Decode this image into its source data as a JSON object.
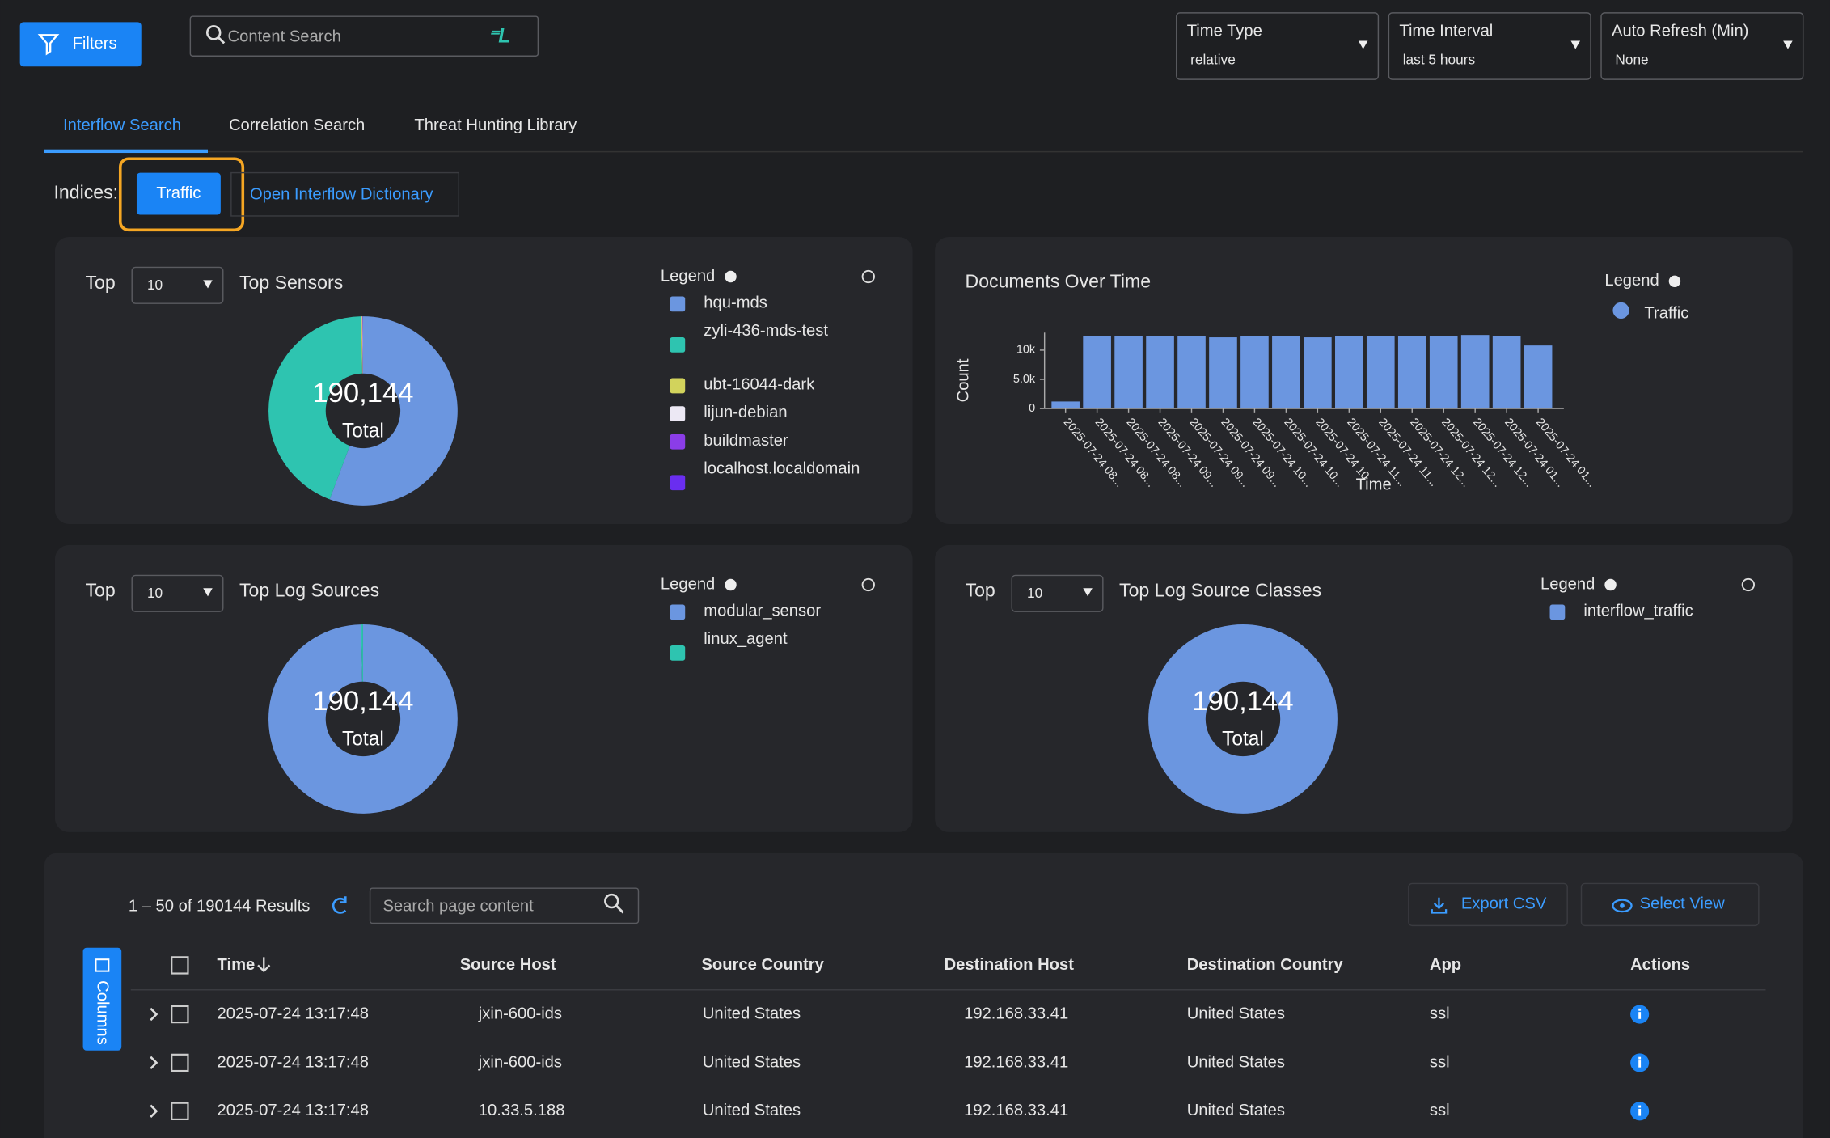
{
  "header": {
    "filters": "Filters",
    "search_placeholder": "Content Search",
    "dropdowns": [
      {
        "label": "Time Type",
        "value": "relative"
      },
      {
        "label": "Time Interval",
        "value": "last 5 hours"
      },
      {
        "label": "Auto Refresh (Min)",
        "value": "None"
      }
    ]
  },
  "tabs": [
    "Interflow Search",
    "Correlation Search",
    "Threat Hunting Library"
  ],
  "indices": {
    "label": "Indices:",
    "selected": "Traffic",
    "dictionary_link": "Open Interflow Dictionary"
  },
  "chart_data": [
    {
      "type": "pie",
      "top_label": "Top",
      "top_n": 10,
      "title": "Top Sensors",
      "legend_title": "Legend",
      "total": {
        "value": 190144,
        "label": "190,144"
      },
      "total_caption": "Total",
      "categories": [
        "hqu-mds",
        "zyli-436-mds-test",
        "ubt-16044-dark",
        "lijun-debian",
        "buildmaster",
        "localhost.localdomain"
      ],
      "values": [
        106000,
        83500,
        300,
        200,
        100,
        44
      ],
      "colors": [
        "#6b96e0",
        "#2ec4b0",
        "#d2d35c",
        "#ece8f4",
        "#8b3de8",
        "#6a2ef0"
      ]
    },
    {
      "type": "bar",
      "title": "Documents Over Time",
      "legend_title": "Legend",
      "xlabel": "Time",
      "ylabel": "Count",
      "categories": [
        "2025-07-24 08...",
        "2025-07-24 08...",
        "2025-07-24 08...",
        "2025-07-24 09...",
        "2025-07-24 09...",
        "2025-07-24 09...",
        "2025-07-24 10...",
        "2025-07-24 10...",
        "2025-07-24 10",
        "2025-07-24 11...",
        "2025-07-24 11...",
        "2025-07-24 12...",
        "2025-07-24 12...",
        "2025-07-24 12...",
        "2025-07-24 01...",
        "2025-07-24 01..."
      ],
      "series": [
        {
          "name": "Traffic",
          "color": "#6b96e0",
          "values": [
            1200,
            12400,
            12400,
            12400,
            12400,
            12200,
            12400,
            12400,
            12200,
            12400,
            12400,
            12400,
            12400,
            12600,
            12400,
            10800
          ]
        }
      ],
      "ylim": [
        0,
        13000
      ],
      "yticks": [
        0,
        {
          "value": 5000,
          "label": "5.0k"
        },
        {
          "value": 10000,
          "label": "10k"
        }
      ]
    },
    {
      "type": "pie",
      "top_label": "Top",
      "top_n": 10,
      "title": "Top Log Sources",
      "legend_title": "Legend",
      "total": {
        "value": 190144,
        "label": "190,144"
      },
      "total_caption": "Total",
      "categories": [
        "modular_sensor",
        "linux_agent"
      ],
      "values": [
        189500,
        644
      ],
      "colors": [
        "#6b96e0",
        "#2ec4b0"
      ]
    },
    {
      "type": "pie",
      "top_label": "Top",
      "top_n": 10,
      "title": "Top Log Source Classes",
      "legend_title": "Legend",
      "total": {
        "value": 190144,
        "label": "190,144"
      },
      "total_caption": "Total",
      "categories": [
        "interflow_traffic"
      ],
      "values": [
        190144
      ],
      "colors": [
        "#6b96e0"
      ]
    }
  ],
  "results": {
    "summary": "1 – 50 of 190144 Results",
    "search_placeholder": "Search page content",
    "export": "Export CSV",
    "select_view": "Select View",
    "columns_button": "Columns",
    "columns": [
      "Time",
      "Source Host",
      "Source Country",
      "Destination Host",
      "Destination Country",
      "App",
      "Actions"
    ],
    "rows": [
      [
        "2025-07-24 13:17:48",
        "jxin-600-ids",
        "United States",
        "192.168.33.41",
        "United States",
        "ssl"
      ],
      [
        "2025-07-24 13:17:48",
        "jxin-600-ids",
        "United States",
        "192.168.33.41",
        "United States",
        "ssl"
      ],
      [
        "2025-07-24 13:17:48",
        "10.33.5.188",
        "United States",
        "192.168.33.41",
        "United States",
        "ssl"
      ]
    ]
  }
}
